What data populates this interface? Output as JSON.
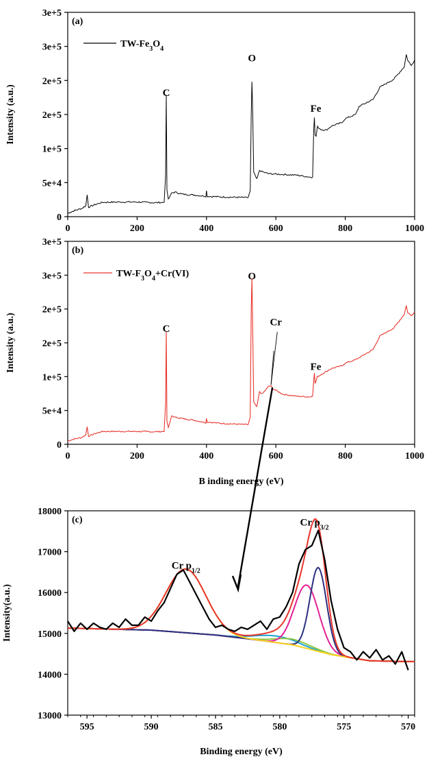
{
  "chart_data": [
    {
      "panel": "(a)",
      "type": "line",
      "xlim": [
        0,
        1000
      ],
      "ylim": [
        0,
        300000
      ],
      "x_ticks": [
        "0",
        "200",
        "400",
        "600",
        "800",
        "1000"
      ],
      "y_ticks": [
        "0",
        "5e+4",
        "1e+5",
        "2e+5",
        "2e+5",
        "3e+5",
        "3e+5"
      ],
      "ylabel": "Intensity (a.u.)",
      "xlabel": "",
      "legend": {
        "placement": "top-left",
        "entries": [
          {
            "name": "TW-Fe3O4",
            "color": "#000000"
          }
        ]
      },
      "peak_labels": [
        {
          "text": "C",
          "x": 284,
          "y": 177000
        },
        {
          "text": "O",
          "x": 531,
          "y": 228000
        },
        {
          "text": "Fe",
          "x": 715,
          "y": 154000
        }
      ],
      "series": [
        {
          "name": "TW-Fe3O4",
          "color": "#000000",
          "points": [
            [
              0,
              5000
            ],
            [
              20,
              9000
            ],
            [
              40,
              12000
            ],
            [
              52,
              16000
            ],
            [
              56,
              32000
            ],
            [
              60,
              14000
            ],
            [
              80,
              18000
            ],
            [
              100,
              21000
            ],
            [
              150,
              21500
            ],
            [
              200,
              21500
            ],
            [
              250,
              20500
            ],
            [
              278,
              21000
            ],
            [
              282,
              60000
            ],
            [
              284,
              179000
            ],
            [
              286,
              40000
            ],
            [
              290,
              25000
            ],
            [
              300,
              35000
            ],
            [
              310,
              36000
            ],
            [
              330,
              33000
            ],
            [
              360,
              32000
            ],
            [
              398,
              30000
            ],
            [
              400,
              38000
            ],
            [
              402,
              30000
            ],
            [
              440,
              29000
            ],
            [
              480,
              28500
            ],
            [
              520,
              28000
            ],
            [
              526,
              38000
            ],
            [
              529,
              150000
            ],
            [
              531,
              198000
            ],
            [
              533,
              160000
            ],
            [
              536,
              65000
            ],
            [
              545,
              55000
            ],
            [
              553,
              68000
            ],
            [
              560,
              66000
            ],
            [
              580,
              63000
            ],
            [
              620,
              62000
            ],
            [
              660,
              61000
            ],
            [
              700,
              58000
            ],
            [
              706,
              58000
            ],
            [
              709,
              128000
            ],
            [
              711,
              145000
            ],
            [
              713,
              120000
            ],
            [
              716,
              118000
            ],
            [
              720,
              132000
            ],
            [
              730,
              128000
            ],
            [
              745,
              127000
            ],
            [
              760,
              133000
            ],
            [
              790,
              138000
            ],
            [
              800,
              144000
            ],
            [
              830,
              150000
            ],
            [
              840,
              162000
            ],
            [
              880,
              172000
            ],
            [
              900,
              190000
            ],
            [
              940,
              202000
            ],
            [
              970,
              220000
            ],
            [
              976,
              238000
            ],
            [
              980,
              230000
            ],
            [
              990,
              222000
            ],
            [
              1000,
              230000
            ]
          ]
        }
      ]
    },
    {
      "panel": "(b)",
      "type": "line",
      "xlim": [
        0,
        1000
      ],
      "ylim": [
        0,
        300000
      ],
      "x_ticks": [
        "0",
        "200",
        "400",
        "600",
        "800",
        "1000"
      ],
      "y_ticks": [
        "0",
        "5e+4",
        "1e+5",
        "2e+5",
        "2e+5",
        "3e+5",
        "3e+5"
      ],
      "ylabel": "Intensity (a.u.)",
      "xlabel": "B inding energy (eV)",
      "legend": {
        "placement": "top-left",
        "entries": [
          {
            "name": "TW-F3O4+Cr(VI)",
            "color": "#e8352c"
          }
        ]
      },
      "peak_labels": [
        {
          "text": "C",
          "x": 284,
          "y": 166000
        },
        {
          "text": "O",
          "x": 531,
          "y": 244000
        },
        {
          "text": "Cr",
          "x": 600,
          "y": 176000
        },
        {
          "text": "Fe",
          "x": 715,
          "y": 110000
        }
      ],
      "series": [
        {
          "name": "TW-F3O4+Cr(VI)",
          "color": "#e8352c",
          "points": [
            [
              0,
              5000
            ],
            [
              20,
              8000
            ],
            [
              40,
              10000
            ],
            [
              52,
              14000
            ],
            [
              56,
              26000
            ],
            [
              60,
              12000
            ],
            [
              80,
              16000
            ],
            [
              100,
              19000
            ],
            [
              150,
              19000
            ],
            [
              200,
              19000
            ],
            [
              250,
              18500
            ],
            [
              278,
              19000
            ],
            [
              282,
              60000
            ],
            [
              284,
              167000
            ],
            [
              286,
              35000
            ],
            [
              290,
              24000
            ],
            [
              300,
              42000
            ],
            [
              310,
              40000
            ],
            [
              330,
              38000
            ],
            [
              360,
              36000
            ],
            [
              398,
              32000
            ],
            [
              400,
              38000
            ],
            [
              402,
              33000
            ],
            [
              440,
              31000
            ],
            [
              480,
              30000
            ],
            [
              520,
              29000
            ],
            [
              526,
              40000
            ],
            [
              529,
              200000
            ],
            [
              531,
              246000
            ],
            [
              533,
              180000
            ],
            [
              536,
              62000
            ],
            [
              545,
              55000
            ],
            [
              553,
              78000
            ],
            [
              560,
              74000
            ],
            [
              570,
              80000
            ],
            [
              580,
              86000
            ],
            [
              586,
              86000
            ],
            [
              592,
              82000
            ],
            [
              620,
              74000
            ],
            [
              660,
              71000
            ],
            [
              700,
              70000
            ],
            [
              706,
              72000
            ],
            [
              709,
              95000
            ],
            [
              711,
              105000
            ],
            [
              713,
              90000
            ],
            [
              716,
              94000
            ],
            [
              720,
              100000
            ],
            [
              760,
              112000
            ],
            [
              790,
              116000
            ],
            [
              800,
              120000
            ],
            [
              830,
              125000
            ],
            [
              840,
              128000
            ],
            [
              880,
              140000
            ],
            [
              900,
              160000
            ],
            [
              940,
              172000
            ],
            [
              970,
              192000
            ],
            [
              976,
              205000
            ],
            [
              980,
              195000
            ],
            [
              990,
              190000
            ],
            [
              1000,
              196000
            ]
          ]
        }
      ]
    },
    {
      "panel": "(c)",
      "type": "line",
      "xlim": [
        596.5,
        569.5
      ],
      "ylim": [
        13000,
        18000
      ],
      "x_ticks": [
        "595",
        "590",
        "585",
        "580",
        "575",
        "570"
      ],
      "y_ticks": [
        "13000",
        "14000",
        "15000",
        "16000",
        "17000",
        "18000"
      ],
      "ylabel": "Intensity(a.u.)",
      "xlabel": "Binding energy (eV)",
      "peak_labels": [
        {
          "text": "Cr p",
          "sub": "1/2",
          "x": 587.3,
          "y": 16580
        },
        {
          "text": "Cr p",
          "sub": "3/2",
          "x": 577.3,
          "y": 17640
        }
      ],
      "background": {
        "x": [
          596.5,
          590,
          585,
          582,
          579,
          576,
          573,
          570
        ],
        "y": [
          15130,
          15080,
          14960,
          14850,
          14720,
          14480,
          14330,
          14310
        ]
      },
      "components": [
        {
          "color": "#ffd21f",
          "type": "gauss",
          "center": 587.3,
          "amp": 1560,
          "sigma": 1.55
        },
        {
          "color": "#e8352c",
          "type": "envelope"
        },
        {
          "color": "#e21f95",
          "type": "gauss",
          "center": 577.9,
          "amp": 1550,
          "sigma": 0.95
        },
        {
          "color": "#2a2f7f",
          "type": "gauss",
          "center": 577.0,
          "amp": 2050,
          "sigma": 0.65
        },
        {
          "color": "#8dc63f",
          "type": "gauss",
          "center": 579.0,
          "amp": 140,
          "sigma": 1.4
        },
        {
          "color": "#1aa3cf",
          "type": "gauss",
          "center": 580.3,
          "amp": 160,
          "sigma": 1.6
        }
      ],
      "raw_series": {
        "color": "#000000",
        "x": [
          596.5,
          596.0,
          595.5,
          595.0,
          594.5,
          594.0,
          593.5,
          593.0,
          592.5,
          592.0,
          591.5,
          591.0,
          590.5,
          590.0,
          589.5,
          589.0,
          588.5,
          588.0,
          587.5,
          587.0,
          586.5,
          586.0,
          585.5,
          585.0,
          584.5,
          584.0,
          583.5,
          583.0,
          582.5,
          582.0,
          581.5,
          581.0,
          580.5,
          580.0,
          579.5,
          579.0,
          578.5,
          578.0,
          577.5,
          577.0,
          576.5,
          576.0,
          575.5,
          575.0,
          574.5,
          574.0,
          573.5,
          573.0,
          572.5,
          572.0,
          571.5,
          571.0,
          570.5,
          570.0
        ],
        "y": [
          15300,
          15050,
          15250,
          15100,
          15250,
          15150,
          15100,
          15250,
          15150,
          15350,
          15200,
          15200,
          15400,
          15300,
          15550,
          15750,
          16100,
          16450,
          16550,
          16250,
          15950,
          15650,
          15350,
          15150,
          15200,
          15100,
          15050,
          15150,
          15100,
          15200,
          15300,
          15100,
          15350,
          15400,
          15650,
          16000,
          16700,
          17050,
          17150,
          17520,
          16800,
          15800,
          15100,
          14650,
          14550,
          14350,
          14550,
          14400,
          14600,
          14350,
          14450,
          14250,
          14550,
          14100
        ]
      }
    }
  ]
}
